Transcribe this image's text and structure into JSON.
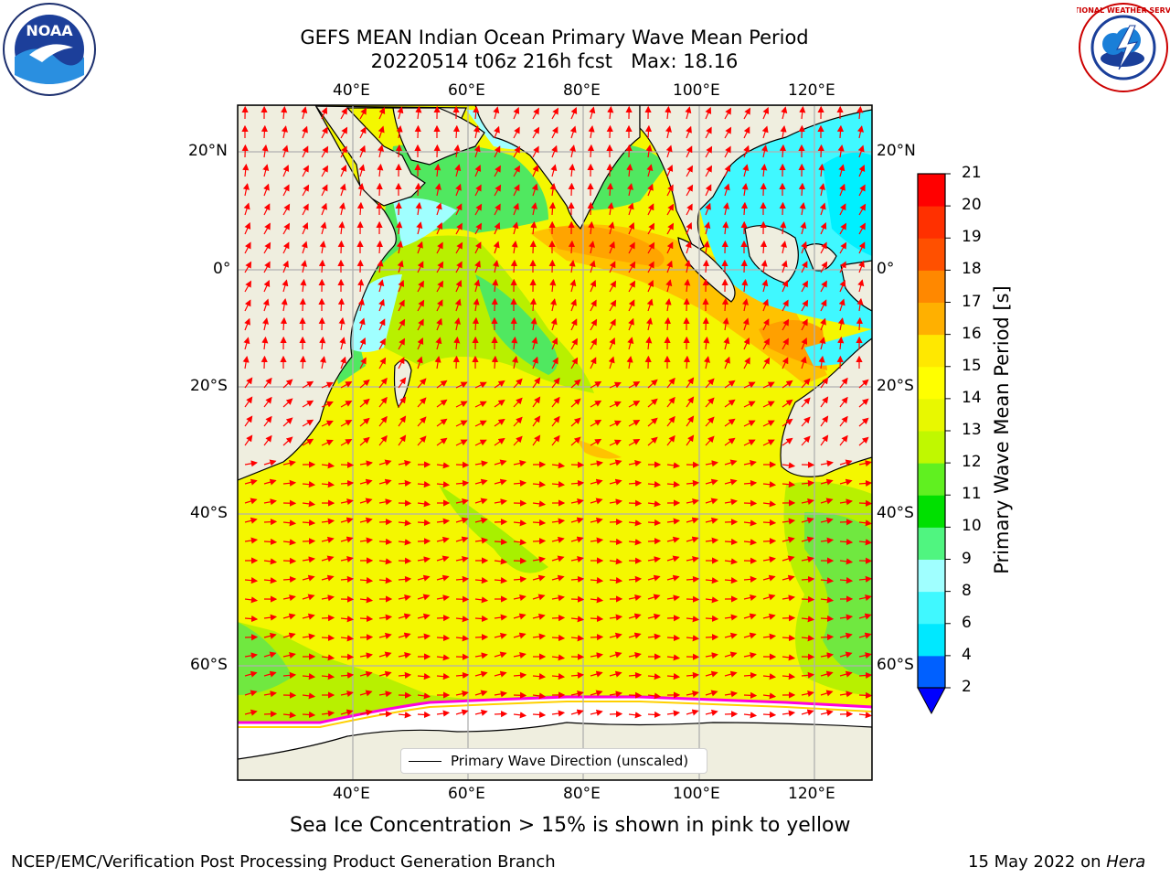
{
  "title": {
    "line1": "GEFS MEAN Indian Ocean Primary Wave Mean Period",
    "line2": "20220514 t06z 216h fcst   Max: 18.16"
  },
  "map": {
    "lon_ticks": [
      "40°E",
      "60°E",
      "80°E",
      "100°E",
      "120°E"
    ],
    "lat_ticks": [
      "20°N",
      "0°",
      "20°S",
      "40°S",
      "60°S"
    ],
    "lon_range": [
      20,
      130
    ],
    "lat_range": [
      28,
      -88
    ],
    "colors": {
      "land": "#efeedf",
      "ice": "#ffffff",
      "grid": "#b0b0b0",
      "arrow": "#ff0000",
      "ice_edge": "#ff00dd"
    }
  },
  "legend": {
    "label": "Primary Wave Direction (unscaled)"
  },
  "colorbar": {
    "label": "Primary Wave Mean Period [s]",
    "levels": [
      "2",
      "4",
      "6",
      "8",
      "9",
      "10",
      "11",
      "12",
      "13",
      "14",
      "15",
      "16",
      "17",
      "18",
      "19",
      "20",
      "21"
    ],
    "colors": [
      "#0060ff",
      "#00e8ff",
      "#40f8ff",
      "#a0ffff",
      "#50f580",
      "#00e000",
      "#60f020",
      "#c0f800",
      "#e8f800",
      "#ffff00",
      "#ffe800",
      "#ffb000",
      "#ff8800",
      "#ff5000",
      "#ff3000",
      "#ff0000"
    ],
    "extend_color": "#0000ff"
  },
  "note": "Sea Ice Concentration > 15% is shown in pink to yellow",
  "footer": {
    "left": "NCEP/EMC/Verification Post Processing Product Generation Branch",
    "date": "15 May 2022 on ",
    "host": "Hera"
  },
  "logos": {
    "left_text": "NOAA",
    "right_text": "NATIONAL WEATHER SERVICE"
  }
}
